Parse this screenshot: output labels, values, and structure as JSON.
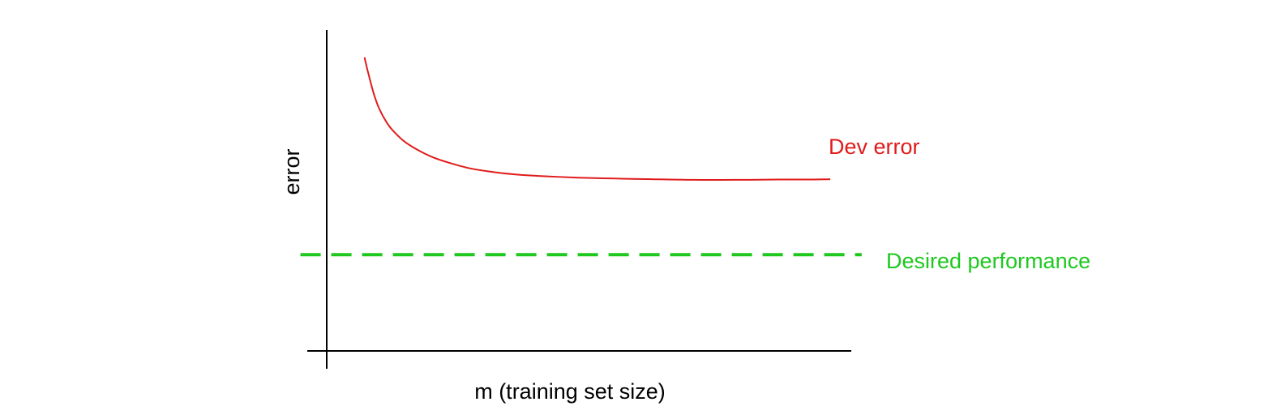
{
  "chart_data": {
    "type": "line",
    "title": "",
    "xlabel": "m (training set size)",
    "ylabel": "error",
    "xlim": [
      0,
      100
    ],
    "ylim": [
      0,
      100
    ],
    "grid": false,
    "legend": "none",
    "series": [
      {
        "name": "Dev error",
        "color": "#e11b1b",
        "style": "solid",
        "x": [
          7.2,
          8.0,
          9.0,
          10.0,
          11.5,
          13.0,
          15.0,
          17.5,
          20.0,
          23.0,
          27.0,
          31.0,
          36.0,
          42.0,
          48.0,
          55.0,
          62.0,
          70.0,
          78.0,
          86.0,
          91.0,
          96.0
        ],
        "y": [
          91.5,
          86.0,
          80.0,
          75.5,
          71.0,
          68.0,
          65.0,
          62.5,
          60.5,
          58.8,
          57.0,
          55.9,
          55.0,
          54.4,
          54.0,
          53.7,
          53.5,
          53.3,
          53.3,
          53.4,
          53.4,
          53.5
        ]
      },
      {
        "name": "Desired performance",
        "color": "#1ec81e",
        "style": "dashed",
        "x": [
          -5,
          102
        ],
        "y": [
          30,
          30
        ]
      }
    ]
  }
}
